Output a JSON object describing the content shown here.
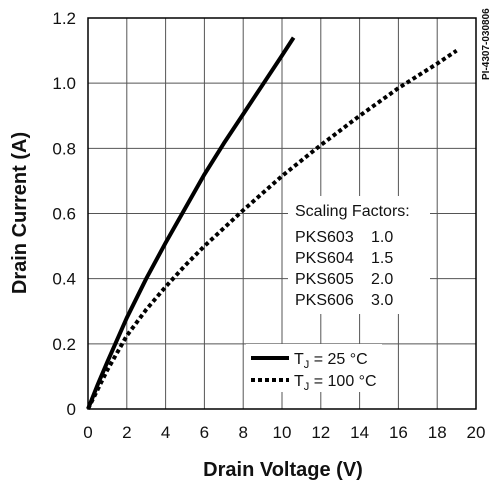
{
  "chart_data": {
    "type": "line",
    "xlabel": "Drain Voltage (V)",
    "ylabel": "Drain Current (A)",
    "xlim": [
      0,
      20
    ],
    "ylim": [
      0,
      1.2
    ],
    "x_ticks": [
      "0",
      "2",
      "4",
      "6",
      "8",
      "10",
      "12",
      "14",
      "16",
      "18",
      "20"
    ],
    "y_ticks": [
      "0",
      "0.2",
      "0.4",
      "0.6",
      "0.8",
      "1.0",
      "1.2"
    ],
    "grid": true,
    "part_number": "PI-4307-030806",
    "series": [
      {
        "name": "TJ = 25 °C",
        "legend_main": "T",
        "legend_sub": "J",
        "legend_rest": " = 25 °C",
        "style": "solid",
        "x": [
          0,
          0.5,
          1,
          2,
          3,
          4,
          5,
          6,
          7,
          8,
          9,
          10,
          10.6
        ],
        "y": [
          0,
          0.075,
          0.145,
          0.28,
          0.4,
          0.51,
          0.615,
          0.72,
          0.815,
          0.905,
          0.995,
          1.085,
          1.14
        ]
      },
      {
        "name": "TJ = 100 °C",
        "legend_main": "T",
        "legend_sub": "J",
        "legend_rest": " = 100 °C",
        "style": "dotted",
        "x": [
          0,
          0.5,
          1,
          2,
          3,
          4,
          5,
          6,
          8,
          10,
          12,
          14,
          16,
          18,
          19
        ],
        "y": [
          0,
          0.06,
          0.12,
          0.225,
          0.305,
          0.375,
          0.44,
          0.5,
          0.61,
          0.715,
          0.81,
          0.9,
          0.985,
          1.06,
          1.1
        ]
      }
    ],
    "scaling_factors": {
      "title": "Scaling Factors:",
      "rows": [
        {
          "part": "PKS603",
          "factor": "1.0"
        },
        {
          "part": "PKS604",
          "factor": "1.5"
        },
        {
          "part": "PKS605",
          "factor": "2.0"
        },
        {
          "part": "PKS606",
          "factor": "3.0"
        }
      ]
    }
  }
}
